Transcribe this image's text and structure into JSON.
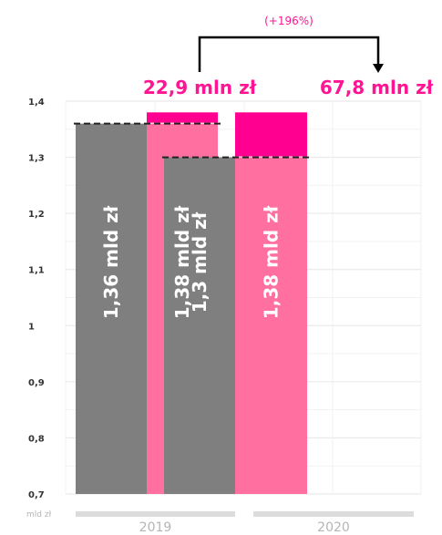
{
  "chart_data": {
    "type": "bar",
    "ylim": [
      0.7,
      1.4
    ],
    "yticks": [
      0.7,
      0.8,
      0.9,
      1.0,
      1.1,
      1.2,
      1.3,
      1.4
    ],
    "ytick_labels": [
      "0,7",
      "0,8",
      "0,9",
      "1",
      "1,1",
      "1,2",
      "1,3",
      "1,4"
    ],
    "unit_label": "mld zł",
    "grid": true,
    "groups": [
      {
        "category": "2019",
        "bars": [
          {
            "value": 1.36,
            "label": "1,36 mld zł",
            "color": "#7f7f7f"
          },
          {
            "value": 1.38,
            "base": 1.36,
            "label": "1,38 mld zł",
            "color": "#ff6fa0",
            "increment_color": "#ff0090"
          }
        ],
        "increment_label": "22,9 mln zł"
      },
      {
        "category": "2020",
        "bars": [
          {
            "value": 1.3,
            "label": "1,3 mld zł",
            "color": "#7f7f7f"
          },
          {
            "value": 1.38,
            "base": 1.3,
            "label": "1,38 mld zł",
            "color": "#ff6fa0",
            "increment_color": "#ff0090"
          }
        ],
        "increment_label": "67,8 mln zł"
      }
    ],
    "annotation": {
      "text": "(+196%)",
      "from_group": 0,
      "to_group": 1,
      "color": "#ff1493"
    },
    "accent_color": "#ff1493"
  }
}
